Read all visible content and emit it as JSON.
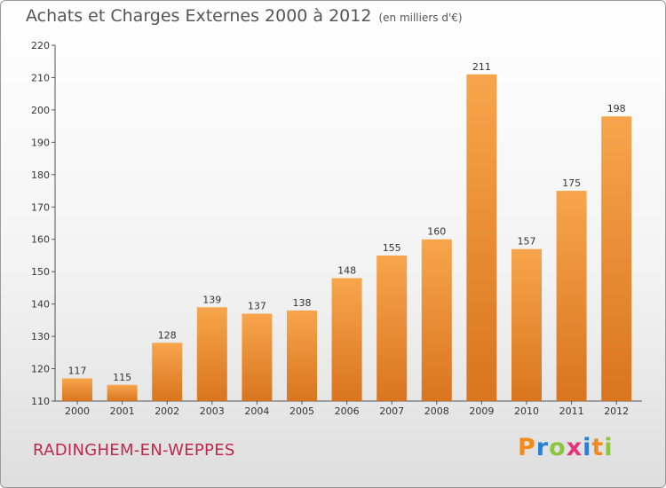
{
  "header": {
    "title": "Achats et Charges Externes 2000 à 2012",
    "unit": "(en milliers d'€)"
  },
  "footer": {
    "place": "RADINGHEM-EN-WEPPES",
    "logo_letters": [
      "P",
      "r",
      "o",
      "x",
      "i",
      "t",
      "i"
    ],
    "logo_colors": [
      "#f28a1c",
      "#2a7fd4",
      "#8cc63f",
      "#e8327c",
      "#2a7fd4",
      "#f28a1c",
      "#8cc63f"
    ]
  },
  "colors": {
    "bar_top": "#f7a54c",
    "bar_bottom": "#d9751e",
    "place": "#c0284b"
  },
  "chart_data": {
    "type": "bar",
    "title": "Achats et Charges Externes 2000 à 2012",
    "subtitle": "(en milliers d'€)",
    "categories": [
      "2000",
      "2001",
      "2002",
      "2003",
      "2004",
      "2005",
      "2006",
      "2007",
      "2008",
      "2009",
      "2010",
      "2011",
      "2012"
    ],
    "values": [
      117,
      115,
      128,
      139,
      137,
      138,
      148,
      155,
      160,
      211,
      157,
      175,
      198
    ],
    "ylim": [
      110,
      220
    ],
    "yticks": [
      110,
      120,
      130,
      140,
      150,
      160,
      170,
      180,
      190,
      200,
      210,
      220
    ],
    "grid": false,
    "data_labels": true
  }
}
